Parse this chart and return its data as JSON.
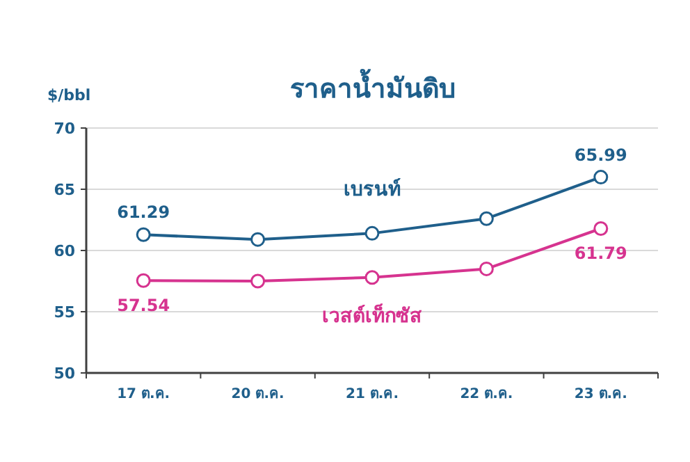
{
  "chart_data": {
    "type": "line",
    "title": "ราคาน้ำมันดิบ",
    "ylabel": "$/bbl",
    "categories": [
      "17 ต.ค.",
      "20 ต.ค.",
      "21 ต.ค.",
      "22 ต.ค.",
      "23 ต.ค."
    ],
    "series": [
      {
        "name": "เบรนท์",
        "color": "#1f5f8b",
        "values": [
          61.29,
          60.9,
          61.4,
          62.6,
          65.99
        ],
        "value_labels": [
          "61.29",
          null,
          null,
          null,
          "65.99"
        ]
      },
      {
        "name": "เวสต์เท็กซัส",
        "color": "#d6338f",
        "values": [
          57.54,
          57.5,
          57.8,
          58.5,
          61.79
        ],
        "value_labels": [
          "57.54",
          null,
          null,
          null,
          "61.79"
        ]
      }
    ],
    "ylim": [
      50,
      70
    ],
    "yticks": [
      50,
      55,
      60,
      65,
      70
    ],
    "grid": "y",
    "marker": "circle",
    "line_style": "solid"
  }
}
